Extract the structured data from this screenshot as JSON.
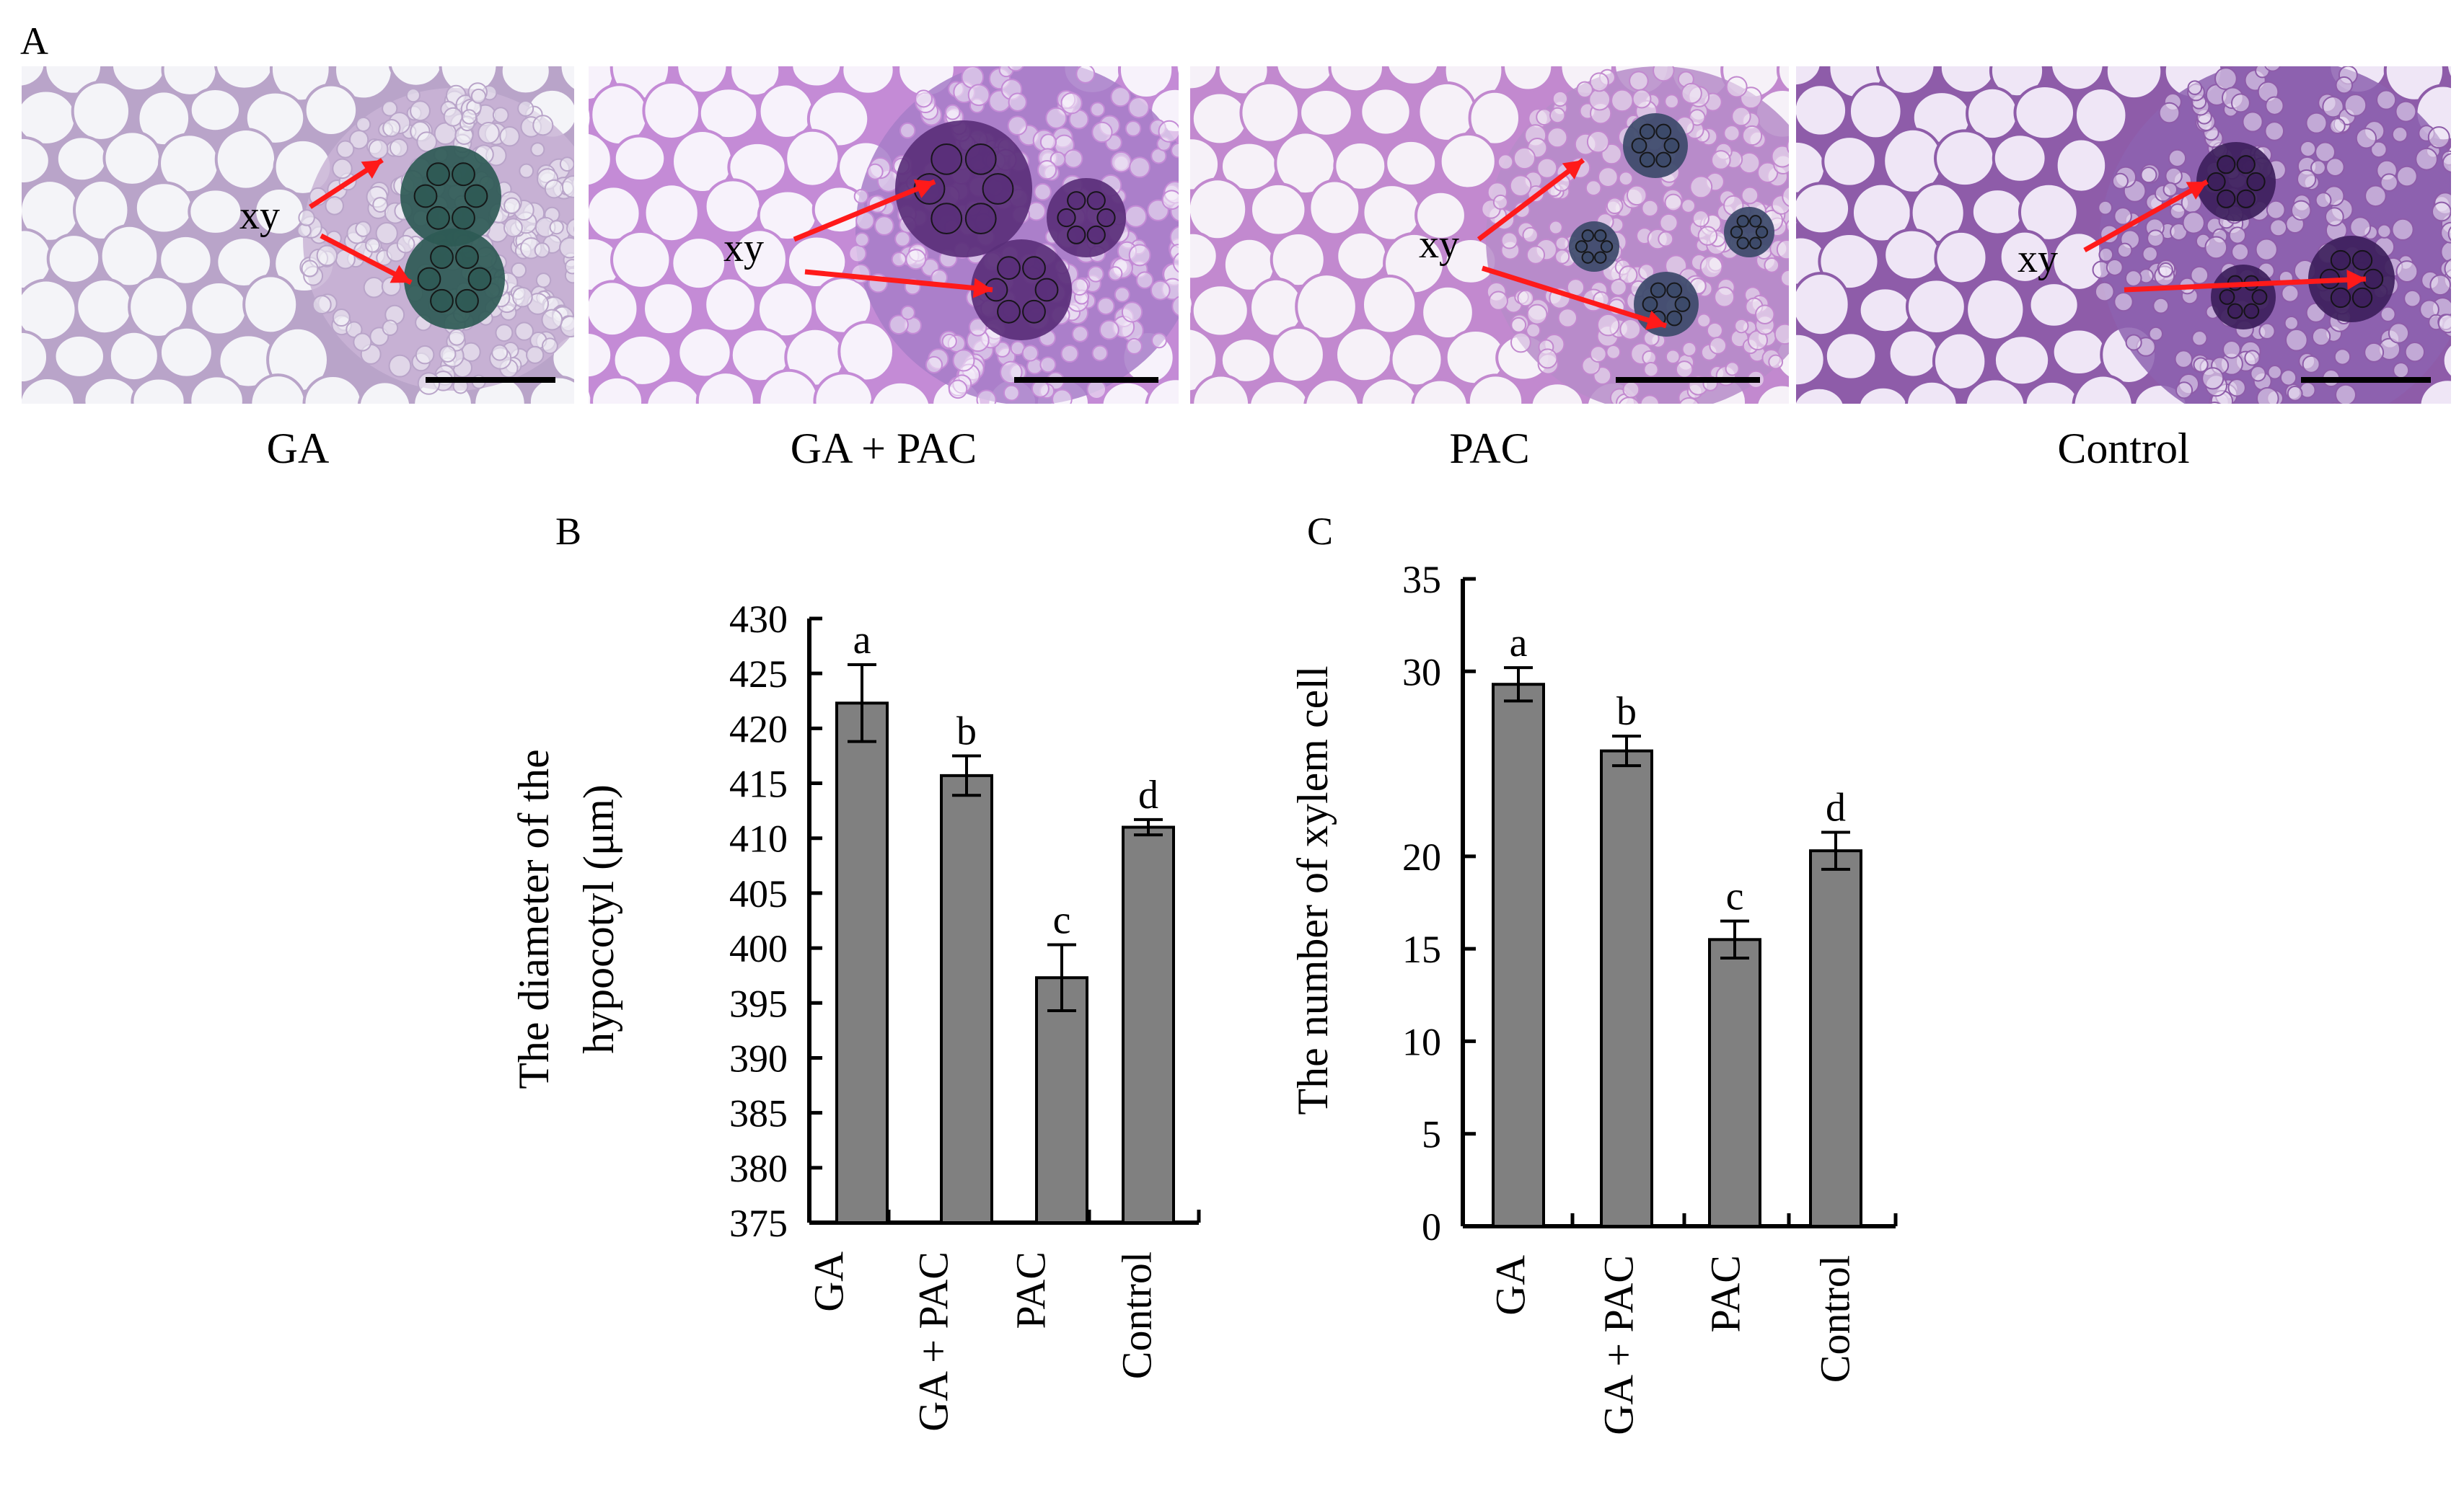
{
  "panels": {
    "a": {
      "letter": "A",
      "annotation": "xy",
      "images": [
        {
          "label": "GA",
          "tone": "blue-green",
          "cell": "#f4f4f8",
          "wall": "#b9a4c9",
          "bundle": "#2e5a55",
          "stain": "#c9b4d6"
        },
        {
          "label": "GA + PAC",
          "tone": "purple",
          "cell": "#f7f2fb",
          "wall": "#c48bd6",
          "bundle": "#5a2f7a",
          "stain": "#a77cc8"
        },
        {
          "label": "PAC",
          "tone": "purple",
          "cell": "#f6f1f8",
          "wall": "#c289cf",
          "bundle": "#3c4a6a",
          "stain": "#b68cc9"
        },
        {
          "label": "Control",
          "tone": "violet",
          "cell": "#efe6f6",
          "wall": "#8e5ca9",
          "bundle": "#3d1f5c",
          "stain": "#8d62b0"
        }
      ],
      "arrow_color": "#ff1a1a",
      "scale_bar_color": "#000000"
    },
    "b": {
      "letter": "B"
    },
    "c": {
      "letter": "C"
    }
  },
  "chart_data": [
    {
      "type": "bar",
      "categories": [
        "GA",
        "GA + PAC",
        "PAC",
        "Control"
      ],
      "values": [
        422.3,
        415.7,
        397.3,
        411.0
      ],
      "errors": [
        3.5,
        1.8,
        3.0,
        0.7
      ],
      "significance": [
        "a",
        "b",
        "c",
        "d"
      ],
      "ylabel_line1": "The diameter of the",
      "ylabel_line2": "hypocotyl (μm)",
      "ylim": [
        375,
        430
      ],
      "yticks": [
        375,
        380,
        385,
        390,
        395,
        400,
        405,
        410,
        415,
        420,
        425,
        430
      ],
      "bar_color": "#808080"
    },
    {
      "type": "bar",
      "categories": [
        "GA",
        "GA + PAC",
        "PAC",
        "Control"
      ],
      "values": [
        29.3,
        25.7,
        15.5,
        20.3
      ],
      "errors": [
        0.9,
        0.8,
        1.0,
        1.0
      ],
      "significance": [
        "a",
        "b",
        "c",
        "d"
      ],
      "ylabel": "The number of xylem cell",
      "ylim": [
        0,
        35
      ],
      "yticks": [
        0,
        5,
        10,
        15,
        20,
        30,
        35
      ],
      "bar_color": "#808080"
    }
  ]
}
